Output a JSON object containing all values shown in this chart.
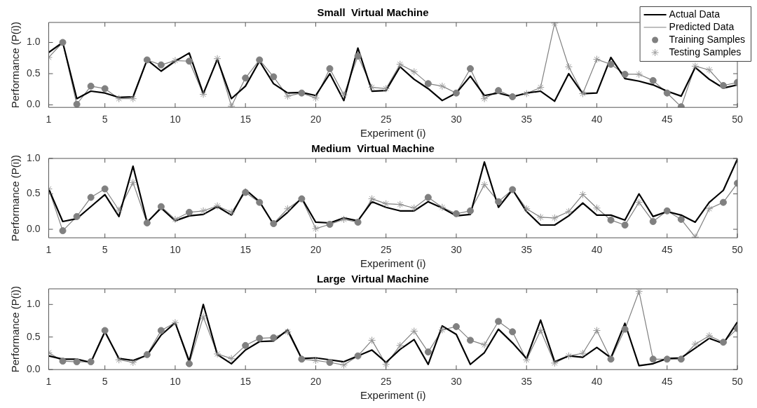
{
  "chart_data": [
    {
      "type": "line",
      "title": "Small  Virtual Machine",
      "xlabel": "Experiment (i)",
      "ylabel": "Performance (P(i))",
      "x": [
        1,
        2,
        3,
        4,
        5,
        6,
        7,
        8,
        9,
        10,
        11,
        12,
        13,
        14,
        15,
        16,
        17,
        18,
        19,
        20,
        21,
        22,
        23,
        24,
        25,
        26,
        27,
        28,
        29,
        30,
        31,
        32,
        33,
        34,
        35,
        36,
        37,
        38,
        39,
        40,
        41,
        42,
        43,
        44,
        45,
        46,
        47,
        48,
        49,
        50
      ],
      "xlim": [
        1,
        50
      ],
      "xticks": [
        1,
        5,
        10,
        15,
        20,
        25,
        30,
        35,
        40,
        45,
        50
      ],
      "ylim": [
        -0.04,
        1.32
      ],
      "yticks": [
        {
          "value": 0,
          "label": "0.0"
        },
        {
          "value": 0.5,
          "label": "0.5"
        },
        {
          "value": 1,
          "label": "1.0"
        }
      ],
      "legend": "top right",
      "grid": false,
      "series": [
        {
          "name": "Actual Data",
          "marker": "none",
          "line_style": "solid",
          "color": "#000000",
          "values": [
            0.84,
            1.0,
            0.1,
            0.22,
            0.19,
            0.12,
            0.13,
            0.72,
            0.54,
            0.7,
            0.83,
            0.18,
            0.73,
            0.1,
            0.3,
            0.7,
            0.34,
            0.19,
            0.2,
            0.15,
            0.5,
            0.07,
            0.91,
            0.22,
            0.23,
            0.61,
            0.41,
            0.26,
            0.07,
            0.19,
            0.46,
            0.15,
            0.19,
            0.13,
            0.19,
            0.22,
            0.06,
            0.5,
            0.18,
            0.19,
            0.76,
            0.42,
            0.38,
            0.32,
            0.22,
            0.14,
            0.6,
            0.41,
            0.27,
            0.32
          ]
        },
        {
          "name": "Predicted Data",
          "marker": "none",
          "line_style": "solid",
          "color": "#808080",
          "values": [
            0.76,
            1.0,
            0.01,
            0.3,
            0.26,
            0.1,
            0.1,
            0.72,
            0.64,
            0.71,
            0.7,
            0.17,
            0.74,
            -0.02,
            0.43,
            0.72,
            0.45,
            0.14,
            0.19,
            0.11,
            0.58,
            0.16,
            0.78,
            0.28,
            0.26,
            0.65,
            0.53,
            0.34,
            0.3,
            0.19,
            0.58,
            0.1,
            0.23,
            0.13,
            0.18,
            0.28,
            1.31,
            0.61,
            0.18,
            0.73,
            0.65,
            0.49,
            0.49,
            0.39,
            0.19,
            -0.03,
            0.62,
            0.56,
            0.31,
            0.36
          ]
        },
        {
          "name": "Training Samples",
          "type": "scatter",
          "marker": "circle",
          "color": "#808080",
          "x": [
            2,
            3,
            4,
            5,
            8,
            9,
            11,
            15,
            16,
            17,
            19,
            21,
            23,
            28,
            30,
            31,
            33,
            34,
            41,
            42,
            44,
            45,
            46,
            49,
            50
          ],
          "values": [
            1.0,
            0.01,
            0.3,
            0.26,
            0.72,
            0.64,
            0.7,
            0.43,
            0.72,
            0.45,
            0.19,
            0.58,
            0.78,
            0.34,
            0.19,
            0.58,
            0.23,
            0.13,
            0.65,
            0.49,
            0.39,
            0.19,
            -0.03,
            0.31,
            0.36
          ]
        },
        {
          "name": "Testing Samples",
          "type": "scatter",
          "marker": "cross",
          "color": "#999999",
          "x": [
            1,
            6,
            7,
            10,
            12,
            13,
            14,
            18,
            20,
            22,
            24,
            25,
            26,
            27,
            29,
            32,
            35,
            36,
            37,
            38,
            39,
            40,
            43,
            47,
            48
          ],
          "values": [
            0.76,
            0.1,
            0.1,
            0.71,
            0.17,
            0.74,
            -0.02,
            0.14,
            0.11,
            0.16,
            0.28,
            0.26,
            0.65,
            0.53,
            0.3,
            0.1,
            0.18,
            0.28,
            1.31,
            0.61,
            0.18,
            0.73,
            0.49,
            0.62,
            0.56
          ]
        }
      ]
    },
    {
      "type": "line",
      "title": "Medium  Virtual Machine",
      "xlabel": "Experiment (i)",
      "ylabel": "Performance (P(i))",
      "x": [
        1,
        2,
        3,
        4,
        5,
        6,
        7,
        8,
        9,
        10,
        11,
        12,
        13,
        14,
        15,
        16,
        17,
        18,
        19,
        20,
        21,
        22,
        23,
        24,
        25,
        26,
        27,
        28,
        29,
        30,
        31,
        32,
        33,
        34,
        35,
        36,
        37,
        38,
        39,
        40,
        41,
        42,
        43,
        44,
        45,
        46,
        47,
        48,
        49,
        50
      ],
      "xlim": [
        1,
        50
      ],
      "xticks": [
        1,
        5,
        10,
        15,
        20,
        25,
        30,
        35,
        40,
        45,
        50
      ],
      "ylim": [
        -0.12,
        1.0
      ],
      "yticks": [
        {
          "value": 0,
          "label": "0.0"
        },
        {
          "value": 0.5,
          "label": "0.5"
        },
        {
          "value": 1,
          "label": "1.0"
        }
      ],
      "grid": false,
      "series": [
        {
          "marker": "none",
          "line_style": "solid",
          "color": "#000000",
          "values": [
            0.57,
            0.11,
            0.15,
            0.32,
            0.49,
            0.18,
            0.89,
            0.1,
            0.3,
            0.12,
            0.19,
            0.21,
            0.32,
            0.2,
            0.56,
            0.39,
            0.07,
            0.24,
            0.44,
            0.1,
            0.09,
            0.16,
            0.12,
            0.39,
            0.31,
            0.26,
            0.26,
            0.39,
            0.3,
            0.19,
            0.21,
            0.95,
            0.31,
            0.56,
            0.25,
            0.06,
            0.06,
            0.19,
            0.37,
            0.2,
            0.2,
            0.13,
            0.5,
            0.18,
            0.25,
            0.2,
            0.1,
            0.38,
            0.55,
            0.99
          ]
        },
        {
          "marker": "none",
          "line_style": "solid",
          "color": "#808080",
          "values": [
            0.57,
            -0.02,
            0.18,
            0.45,
            0.57,
            0.27,
            0.66,
            0.09,
            0.32,
            0.14,
            0.24,
            0.26,
            0.33,
            0.24,
            0.52,
            0.38,
            0.08,
            0.29,
            0.43,
            0.01,
            0.07,
            0.14,
            0.1,
            0.43,
            0.36,
            0.35,
            0.3,
            0.45,
            0.31,
            0.22,
            0.26,
            0.63,
            0.39,
            0.56,
            0.29,
            0.17,
            0.16,
            0.25,
            0.49,
            0.3,
            0.13,
            0.06,
            0.38,
            0.11,
            0.26,
            0.14,
            -0.11,
            0.29,
            0.38,
            0.65
          ]
        },
        {
          "type": "scatter",
          "marker": "circle",
          "color": "#808080",
          "x": [
            2,
            3,
            4,
            5,
            8,
            9,
            11,
            15,
            16,
            17,
            19,
            21,
            23,
            28,
            30,
            31,
            33,
            34,
            41,
            42,
            44,
            45,
            46,
            49,
            50
          ],
          "values": [
            -0.02,
            0.18,
            0.45,
            0.57,
            0.09,
            0.32,
            0.24,
            0.52,
            0.38,
            0.08,
            0.43,
            0.07,
            0.1,
            0.45,
            0.22,
            0.26,
            0.39,
            0.56,
            0.13,
            0.06,
            0.11,
            0.26,
            0.14,
            0.38,
            0.65
          ]
        },
        {
          "type": "scatter",
          "marker": "cross",
          "color": "#999999",
          "x": [
            1,
            6,
            7,
            10,
            12,
            13,
            14,
            18,
            20,
            22,
            24,
            25,
            26,
            27,
            29,
            32,
            35,
            36,
            37,
            38,
            39,
            40,
            43,
            47,
            48
          ],
          "values": [
            0.57,
            0.27,
            0.66,
            0.14,
            0.26,
            0.33,
            0.24,
            0.29,
            0.01,
            0.14,
            0.43,
            0.36,
            0.35,
            0.3,
            0.31,
            0.63,
            0.29,
            0.17,
            0.16,
            0.25,
            0.49,
            0.3,
            0.38,
            -0.11,
            0.29
          ]
        }
      ]
    },
    {
      "type": "line",
      "title": "Large  Virtual Machine",
      "xlabel": "Experiment (i)",
      "ylabel": "Performance (P(i))",
      "x": [
        1,
        2,
        3,
        4,
        5,
        6,
        7,
        8,
        9,
        10,
        11,
        12,
        13,
        14,
        15,
        16,
        17,
        18,
        19,
        20,
        21,
        22,
        23,
        24,
        25,
        26,
        27,
        28,
        29,
        30,
        31,
        32,
        33,
        34,
        35,
        36,
        37,
        38,
        39,
        40,
        41,
        42,
        43,
        44,
        45,
        46,
        47,
        48,
        49,
        50
      ],
      "xlim": [
        1,
        50
      ],
      "xticks": [
        1,
        5,
        10,
        15,
        20,
        25,
        30,
        35,
        40,
        45,
        50
      ],
      "ylim": [
        0,
        1.24
      ],
      "yticks": [
        {
          "value": 0,
          "label": "0.0"
        },
        {
          "value": 0.5,
          "label": "0.5"
        },
        {
          "value": 1,
          "label": "1.0"
        }
      ],
      "grid": false,
      "series": [
        {
          "marker": "none",
          "line_style": "solid",
          "color": "#000000",
          "values": [
            0.21,
            0.16,
            0.16,
            0.11,
            0.58,
            0.17,
            0.14,
            0.22,
            0.53,
            0.72,
            0.13,
            1.0,
            0.23,
            0.09,
            0.3,
            0.43,
            0.44,
            0.61,
            0.17,
            0.18,
            0.15,
            0.12,
            0.21,
            0.3,
            0.11,
            0.31,
            0.46,
            0.08,
            0.67,
            0.54,
            0.08,
            0.26,
            0.62,
            0.41,
            0.17,
            0.76,
            0.12,
            0.21,
            0.19,
            0.34,
            0.18,
            0.71,
            0.06,
            0.09,
            0.17,
            0.18,
            0.33,
            0.48,
            0.4,
            0.73
          ]
        },
        {
          "marker": "none",
          "line_style": "solid",
          "color": "#808080",
          "values": [
            0.26,
            0.13,
            0.12,
            0.12,
            0.6,
            0.15,
            0.11,
            0.23,
            0.6,
            0.72,
            0.09,
            0.81,
            0.24,
            0.17,
            0.37,
            0.48,
            0.49,
            0.58,
            0.16,
            0.14,
            0.11,
            0.07,
            0.21,
            0.45,
            0.08,
            0.37,
            0.59,
            0.27,
            0.61,
            0.66,
            0.45,
            0.38,
            0.74,
            0.58,
            0.15,
            0.6,
            0.1,
            0.21,
            0.25,
            0.6,
            0.16,
            0.62,
            1.2,
            0.16,
            0.16,
            0.16,
            0.39,
            0.52,
            0.42,
            0.63
          ]
        },
        {
          "type": "scatter",
          "marker": "circle",
          "color": "#808080",
          "x": [
            2,
            3,
            4,
            5,
            8,
            9,
            11,
            15,
            16,
            17,
            19,
            21,
            23,
            28,
            30,
            31,
            33,
            34,
            41,
            42,
            44,
            45,
            46,
            49,
            50
          ],
          "values": [
            0.13,
            0.12,
            0.12,
            0.6,
            0.23,
            0.6,
            0.09,
            0.37,
            0.48,
            0.49,
            0.16,
            0.11,
            0.21,
            0.27,
            0.66,
            0.45,
            0.74,
            0.58,
            0.16,
            0.62,
            0.16,
            0.16,
            0.16,
            0.42,
            0.63
          ]
        },
        {
          "type": "scatter",
          "marker": "cross",
          "color": "#999999",
          "x": [
            1,
            6,
            7,
            10,
            12,
            13,
            14,
            18,
            20,
            22,
            24,
            25,
            26,
            27,
            29,
            32,
            35,
            36,
            37,
            38,
            39,
            40,
            43,
            47,
            48
          ],
          "values": [
            0.26,
            0.15,
            0.11,
            0.72,
            0.81,
            0.24,
            0.17,
            0.58,
            0.14,
            0.07,
            0.45,
            0.08,
            0.37,
            0.59,
            0.61,
            0.38,
            0.15,
            0.6,
            0.1,
            0.21,
            0.25,
            0.6,
            1.2,
            0.39,
            0.52
          ]
        }
      ]
    }
  ]
}
